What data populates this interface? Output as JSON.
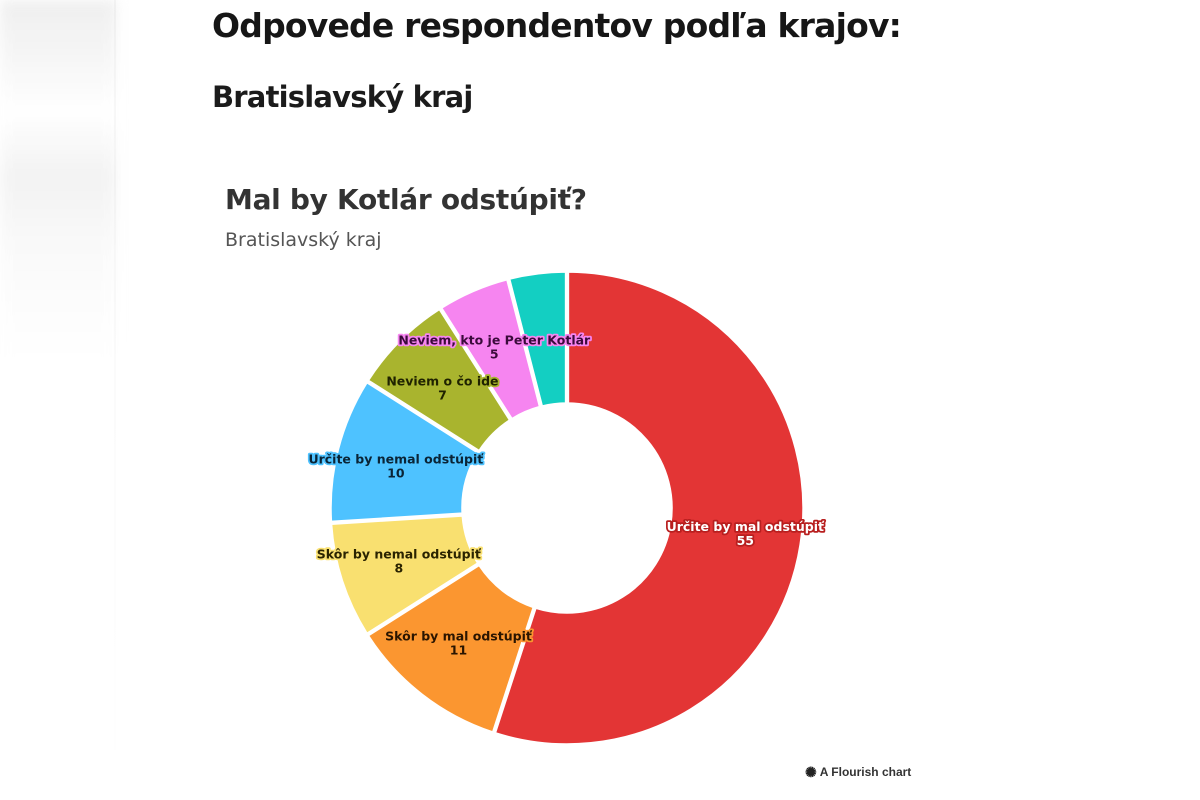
{
  "page": {
    "title": "Odpovede respondentov podľa krajov:",
    "region_heading": "Bratislavský kraj"
  },
  "chart": {
    "title": "Mal by Kotlár odstúpiť?",
    "subtitle": "Bratislavský kraj",
    "credit_icon": "flourish-asterisk-icon",
    "credit": "A Flourish chart"
  },
  "chart_data": {
    "type": "pie",
    "variant": "donut",
    "title": "Mal by Kotlár odstúpiť?",
    "subtitle": "Bratislavský kraj",
    "start_angle_deg": 0,
    "direction": "clockwise",
    "inner_radius_ratio": 0.445,
    "slices": [
      {
        "label": "Určite by mal odstúpiť",
        "value": 55,
        "color": "#e33535",
        "label_color": "#ffffff",
        "halo": "#b81f1f",
        "show_label": true
      },
      {
        "label": "Skôr by mal odstúpiť",
        "value": 11,
        "color": "#fb9630",
        "label_color": "#2a1500",
        "halo": "#fb9630",
        "show_label": true
      },
      {
        "label": "Skôr by nemal odstúpiť",
        "value": 8,
        "color": "#f9e070",
        "label_color": "#2a2300",
        "halo": "#f9e070",
        "show_label": true
      },
      {
        "label": "Určite by nemal odstúpiť",
        "value": 10,
        "color": "#4ec2ff",
        "label_color": "#0a2436",
        "halo": "#4ec2ff",
        "show_label": true
      },
      {
        "label": "Neviem o čo ide",
        "value": 7,
        "color": "#a9b42e",
        "label_color": "#1f2200",
        "halo": "#a9b42e",
        "show_label": true
      },
      {
        "label": "Neviem, kto je Peter Kotlár",
        "value": 5,
        "color": "#f685f0",
        "label_color": "#3b0a3b",
        "halo": "#f685f0",
        "show_label": true
      },
      {
        "label": "",
        "value": 4,
        "color": "#13cfc2",
        "label_color": "#003330",
        "halo": "#13cfc2",
        "show_label": false
      }
    ]
  }
}
